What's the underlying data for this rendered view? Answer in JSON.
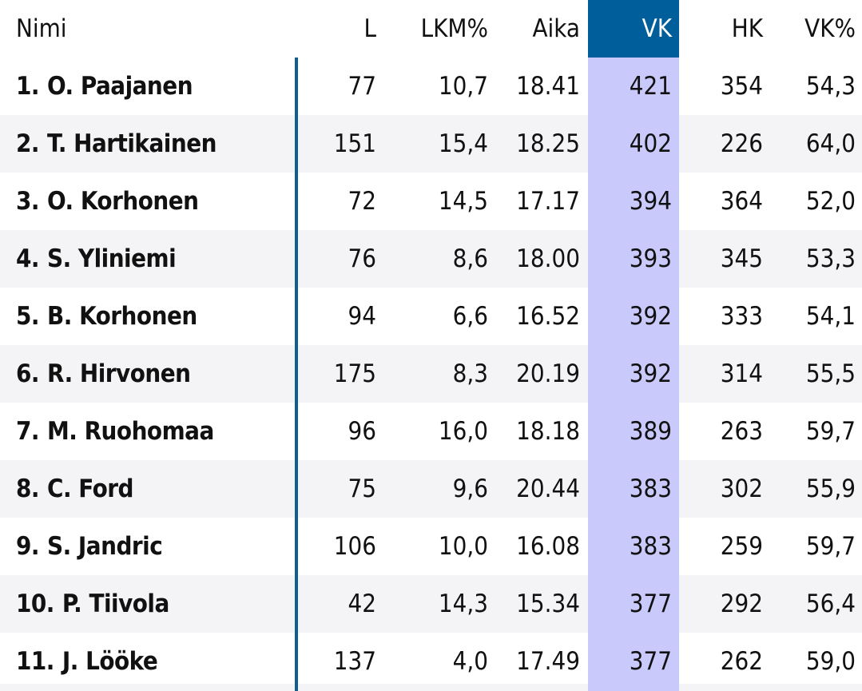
{
  "columns": {
    "name": "Nimi",
    "l": "L",
    "lkm": "LKM%",
    "aika": "Aika",
    "vk": "VK",
    "hk": "HK",
    "vkp": "VK%"
  },
  "rows": [
    {
      "rank": "1.",
      "name": "O. Paajanen",
      "l": "77",
      "lkm": "10,7",
      "aika": "18.41",
      "vk": "421",
      "hk": "354",
      "vkp": "54,3"
    },
    {
      "rank": "2.",
      "name": "T. Hartikainen",
      "l": "151",
      "lkm": "15,4",
      "aika": "18.25",
      "vk": "402",
      "hk": "226",
      "vkp": "64,0"
    },
    {
      "rank": "3.",
      "name": "O. Korhonen",
      "l": "72",
      "lkm": "14,5",
      "aika": "17.17",
      "vk": "394",
      "hk": "364",
      "vkp": "52,0"
    },
    {
      "rank": "4.",
      "name": "S. Yliniemi",
      "l": "76",
      "lkm": "8,6",
      "aika": "18.00",
      "vk": "393",
      "hk": "345",
      "vkp": "53,3"
    },
    {
      "rank": "5.",
      "name": "B. Korhonen",
      "l": "94",
      "lkm": "6,6",
      "aika": "16.52",
      "vk": "392",
      "hk": "333",
      "vkp": "54,1"
    },
    {
      "rank": "6.",
      "name": "R. Hirvonen",
      "l": "175",
      "lkm": "8,3",
      "aika": "20.19",
      "vk": "392",
      "hk": "314",
      "vkp": "55,5"
    },
    {
      "rank": "7.",
      "name": "M. Ruohomaa",
      "l": "96",
      "lkm": "16,0",
      "aika": "18.18",
      "vk": "389",
      "hk": "263",
      "vkp": "59,7"
    },
    {
      "rank": "8.",
      "name": "C. Ford",
      "l": "75",
      "lkm": "9,6",
      "aika": "20.44",
      "vk": "383",
      "hk": "302",
      "vkp": "55,9"
    },
    {
      "rank": "9.",
      "name": "S. Jandric",
      "l": "106",
      "lkm": "10,0",
      "aika": "16.08",
      "vk": "383",
      "hk": "259",
      "vkp": "59,7"
    },
    {
      "rank": "10.",
      "name": "P. Tiivola",
      "l": "42",
      "lkm": "14,3",
      "aika": "15.34",
      "vk": "377",
      "hk": "292",
      "vkp": "56,4"
    },
    {
      "rank": "11.",
      "name": "J. Lööke",
      "l": "137",
      "lkm": "4,0",
      "aika": "17.49",
      "vk": "377",
      "hk": "262",
      "vkp": "59,0"
    }
  ],
  "colors": {
    "header_highlight": "#005f9a",
    "column_highlight": "#c9c9fb",
    "divider": "#0e5f8f",
    "row_alt": "#f4f4f6"
  }
}
